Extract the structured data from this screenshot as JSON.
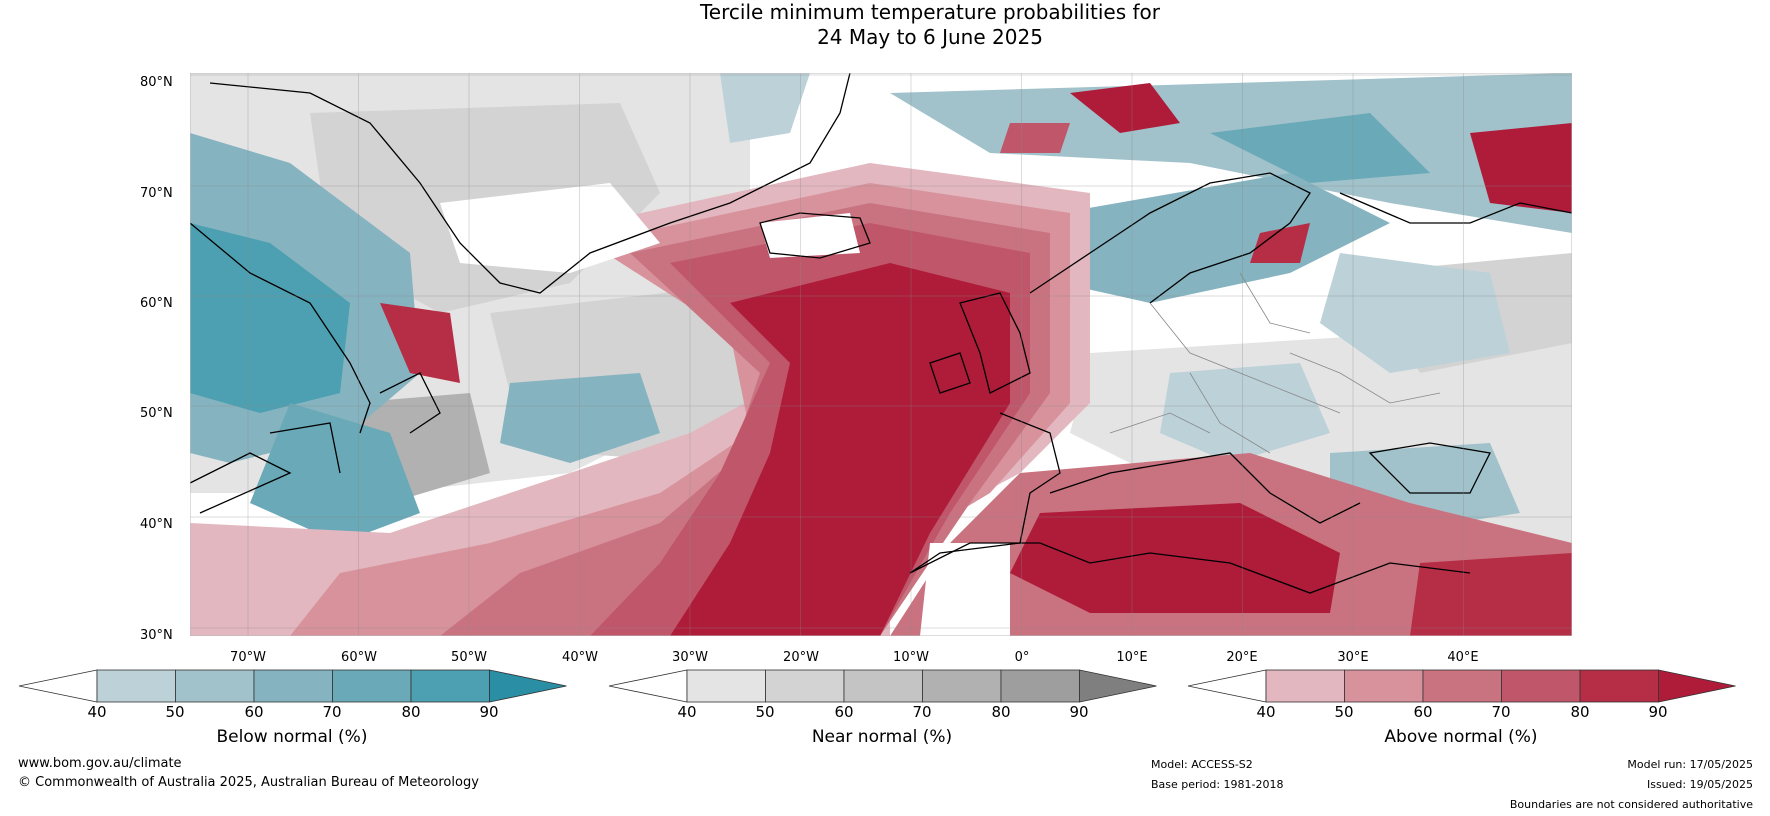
{
  "title": {
    "line1": "Tercile minimum temperature probabilities for",
    "line2": "24 May to 6 June 2025"
  },
  "map": {
    "lat_labels": [
      "80°N",
      "70°N",
      "60°N",
      "50°N",
      "40°N",
      "30°N"
    ],
    "lon_labels": [
      "70°W",
      "60°W",
      "50°W",
      "40°W",
      "30°W",
      "20°W",
      "10°W",
      "0°",
      "10°E",
      "20°E",
      "30°E",
      "40°E"
    ],
    "colors": {
      "below": [
        "#bcd1d8",
        "#a1c2cb",
        "#86b3c0",
        "#6aa9b7",
        "#4da0b1",
        "#2a8fa4"
      ],
      "near": [
        "#e4e4e4",
        "#d3d3d3",
        "#c4c4c4",
        "#b1b1b1",
        "#9e9e9e",
        "#7f7f7f"
      ],
      "above": [
        "#e3b7bf",
        "#d7929c",
        "#ca7380",
        "#c0566a",
        "#b62d46",
        "#ae1c3a"
      ]
    }
  },
  "colorbars": [
    {
      "title": "Below normal (%)",
      "ticks": [
        "40",
        "50",
        "60",
        "70",
        "80",
        "90"
      ]
    },
    {
      "title": "Near normal (%)",
      "ticks": [
        "40",
        "50",
        "60",
        "70",
        "80",
        "90"
      ]
    },
    {
      "title": "Above normal (%)",
      "ticks": [
        "40",
        "50",
        "60",
        "70",
        "80",
        "90"
      ]
    }
  ],
  "footer": {
    "website": "www.bom.gov.au/climate",
    "copyright": "© Commonwealth of Australia 2025, Australian Bureau of Meteorology",
    "model": "Model: ACCESS-S2",
    "base_period": "Base period: 1981-2018",
    "model_run": "Model run: 17/05/2025",
    "issued": "Issued: 19/05/2025",
    "disclaimer": "Boundaries are not considered authoritative"
  }
}
